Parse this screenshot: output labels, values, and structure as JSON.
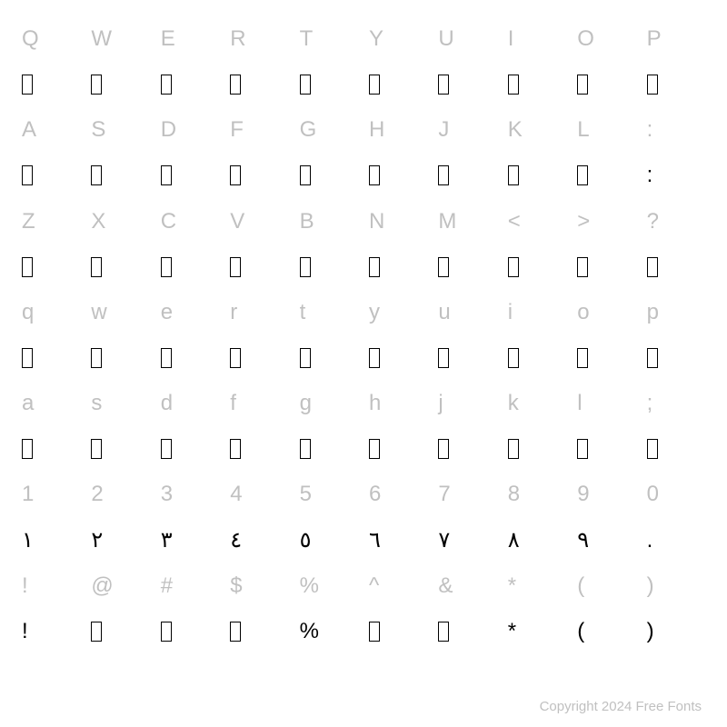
{
  "chart": {
    "type": "table",
    "columns": 10,
    "rows": 14,
    "background_color": "#ffffff",
    "label_color": "#c0c0c0",
    "glyph_color": "#000000",
    "font_size": 24,
    "missing_glyph": {
      "width": 12,
      "height": 22,
      "border_color": "#000000",
      "border_width": 1.5
    },
    "label_rows": [
      [
        "Q",
        "W",
        "E",
        "R",
        "T",
        "Y",
        "U",
        "I",
        "O",
        "P"
      ],
      [
        "A",
        "S",
        "D",
        "F",
        "G",
        "H",
        "J",
        "K",
        "L",
        ":"
      ],
      [
        "Z",
        "X",
        "C",
        "V",
        "B",
        "N",
        "M",
        "<",
        ">",
        "?"
      ],
      [
        "q",
        "w",
        "e",
        "r",
        "t",
        "y",
        "u",
        "i",
        "o",
        "p"
      ],
      [
        "a",
        "s",
        "d",
        "f",
        "g",
        "h",
        "j",
        "k",
        "l",
        ";"
      ],
      [
        "1",
        "2",
        "3",
        "4",
        "5",
        "6",
        "7",
        "8",
        "9",
        "0"
      ],
      [
        "!",
        "@",
        "#",
        "$",
        "%",
        "^",
        "&",
        "*",
        "(",
        ")"
      ]
    ],
    "glyph_rows": [
      [
        "□",
        "□",
        "□",
        "□",
        "□",
        "□",
        "□",
        "□",
        "□",
        "□"
      ],
      [
        "□",
        "□",
        "□",
        "□",
        "□",
        "□",
        "□",
        "□",
        "□",
        ":"
      ],
      [
        "□",
        "□",
        "□",
        "□",
        "□",
        "□",
        "□",
        "□",
        "□",
        "□"
      ],
      [
        "□",
        "□",
        "□",
        "□",
        "□",
        "□",
        "□",
        "□",
        "□",
        "□"
      ],
      [
        "□",
        "□",
        "□",
        "□",
        "□",
        "□",
        "□",
        "□",
        "□",
        "□"
      ],
      [
        "١",
        "٢",
        "٣",
        "٤",
        "٥",
        "٦",
        "٧",
        "٨",
        "٩",
        "."
      ],
      [
        "!",
        "□",
        "□",
        "□",
        "%",
        "□",
        "□",
        "*",
        "(",
        ")"
      ]
    ]
  },
  "footer": {
    "text": "Copyright 2024 Free Fonts"
  }
}
